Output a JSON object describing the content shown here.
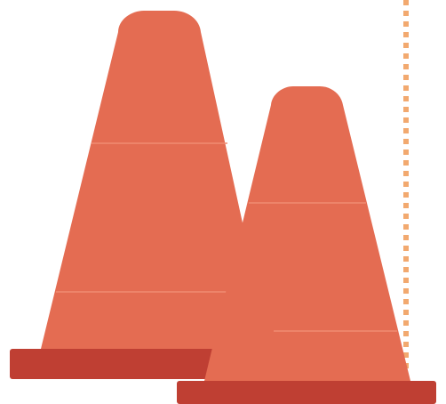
{
  "scene": {
    "objects": [
      {
        "name": "traffic-cone"
      },
      {
        "name": "traffic-cone"
      }
    ],
    "colors": {
      "background": "#ffffff",
      "cone_body": "#e46c52",
      "cone_base": "#bf3f33",
      "cone_stripe_line": "#f08c73",
      "dotted_line": "#f2a96f"
    }
  }
}
